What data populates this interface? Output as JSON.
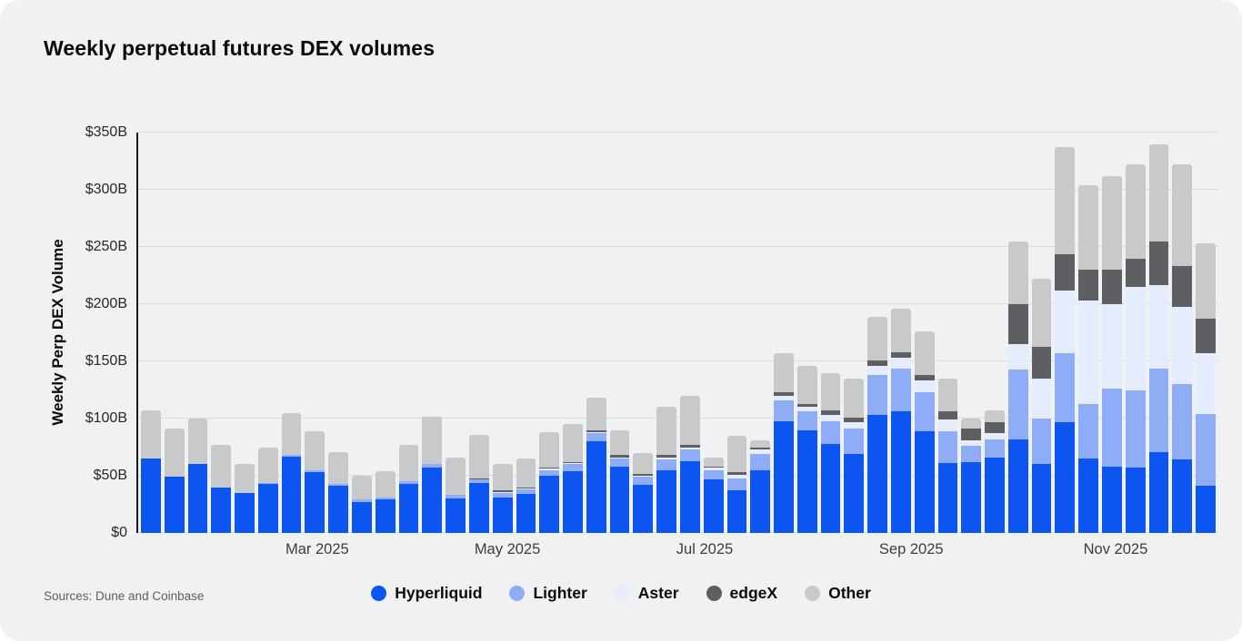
{
  "page": {
    "title": "Weekly perpetual futures DEX volumes",
    "source_note": "Sources: Dune and Coinbase"
  },
  "colors": {
    "hyperliquid": "#0d55f0",
    "lighter": "#8fadf7",
    "aster": "#e4ecfd",
    "edgex": "#5e5f62",
    "other": "#c7c9ca",
    "background": "#f0f1f2",
    "axis": "#17181a",
    "grid": "#dbdcde",
    "text": "#0a0b0d",
    "muted": "#5b5e63"
  },
  "chart_data": {
    "type": "bar",
    "stacked": true,
    "title": "Weekly perpetual futures DEX volumes",
    "xlabel": "",
    "ylabel": "Weekly Perp DEX Volume",
    "unit": "USD billions per week",
    "ylim": [
      0,
      350
    ],
    "grid": true,
    "legend_position": "bottom",
    "n_bars": 46,
    "x_description": "46 weekly bars from mid-January 2025 through early December 2025; only month ticks are labeled",
    "y_ticks": [
      {
        "label": "$0",
        "value": 0
      },
      {
        "label": "$50B",
        "value": 50
      },
      {
        "label": "$100B",
        "value": 100
      },
      {
        "label": "$150B",
        "value": 150
      },
      {
        "label": "$200B",
        "value": 200
      },
      {
        "label": "$250B",
        "value": 250
      },
      {
        "label": "$300B",
        "value": 300
      },
      {
        "label": "$350B",
        "value": 350
      }
    ],
    "x_ticks": [
      {
        "label": "Mar 2025",
        "pos": 7.2
      },
      {
        "label": "May 2025",
        "pos": 15.3
      },
      {
        "label": "Jul 2025",
        "pos": 23.7
      },
      {
        "label": "Sep 2025",
        "pos": 32.5
      },
      {
        "label": "Nov 2025",
        "pos": 41.2
      }
    ],
    "series": [
      {
        "name": "Hyperliquid",
        "color_key": "hyperliquid",
        "values": [
          65,
          49,
          60,
          40,
          35,
          43,
          67,
          53,
          41,
          27,
          29,
          43,
          57,
          30,
          44,
          31,
          34,
          50,
          54,
          80,
          58,
          42,
          55,
          63,
          47,
          37,
          55,
          98,
          90,
          78,
          69,
          103,
          106,
          89,
          61,
          62,
          66,
          82,
          60,
          97,
          65,
          58,
          57,
          71,
          64,
          41
        ]
      },
      {
        "name": "Lighter",
        "color_key": "lighter",
        "values": [
          0,
          0,
          0,
          0,
          0,
          1,
          1,
          2,
          2,
          2,
          2,
          2,
          3,
          3,
          3,
          4,
          4,
          5,
          6,
          7,
          7,
          7,
          9,
          10,
          8,
          11,
          14,
          18,
          16,
          20,
          22,
          35,
          38,
          34,
          28,
          14,
          16,
          61,
          40,
          60,
          48,
          68,
          68,
          73,
          66,
          63
        ]
      },
      {
        "name": "Aster",
        "color_key": "aster",
        "values": [
          0,
          0,
          0,
          0,
          0,
          0,
          0,
          0,
          0,
          0,
          0,
          0,
          0,
          0,
          0,
          1,
          1,
          1,
          1,
          1,
          1,
          1,
          2,
          2,
          2,
          3,
          4,
          4,
          4,
          5,
          6,
          8,
          9,
          10,
          10,
          5,
          5,
          22,
          35,
          55,
          90,
          74,
          90,
          73,
          68,
          53
        ]
      },
      {
        "name": "edgeX",
        "color_key": "edgex",
        "values": [
          0,
          0,
          0,
          0,
          0,
          0,
          0,
          0,
          0,
          0,
          0,
          0,
          0,
          0,
          1,
          1,
          1,
          1,
          1,
          2,
          2,
          2,
          2,
          2,
          1,
          2,
          2,
          3,
          3,
          4,
          4,
          5,
          5,
          5,
          7,
          10,
          10,
          35,
          28,
          32,
          27,
          30,
          25,
          38,
          35,
          30
        ]
      },
      {
        "name": "Other",
        "color_key": "other",
        "values": [
          42,
          42,
          40,
          37,
          25,
          31,
          37,
          34,
          28,
          21,
          23,
          32,
          42,
          33,
          38,
          23,
          25,
          31,
          33,
          28,
          22,
          18,
          42,
          43,
          8,
          32,
          6,
          34,
          33,
          33,
          34,
          38,
          38,
          38,
          29,
          9,
          10,
          55,
          59,
          93,
          74,
          82,
          82,
          85,
          89,
          66
        ]
      }
    ]
  },
  "legend": {
    "items": [
      {
        "label": "Hyperliquid",
        "color_key": "hyperliquid"
      },
      {
        "label": "Lighter",
        "color_key": "lighter"
      },
      {
        "label": "Aster",
        "color_key": "aster"
      },
      {
        "label": "edgeX",
        "color_key": "edgex"
      },
      {
        "label": "Other",
        "color_key": "other"
      }
    ]
  }
}
